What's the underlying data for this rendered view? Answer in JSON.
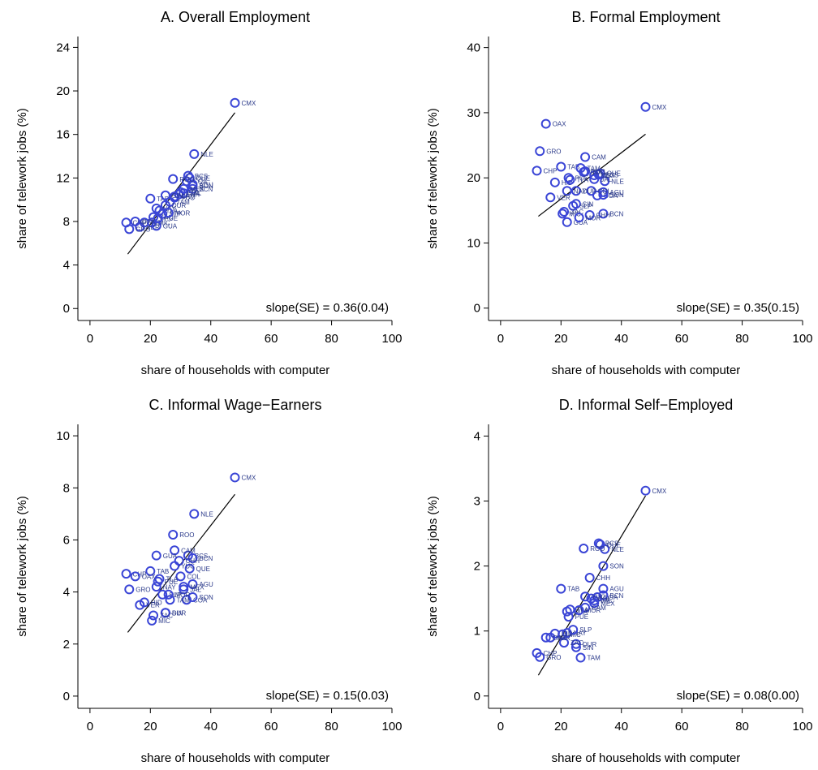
{
  "chart_data": [
    {
      "type": "scatter",
      "title": "A. Overall Employment",
      "x_label": "share of households with computer",
      "y_label": "share of telework jobs (%)",
      "annotation": "slope(SE) = 0.36(0.04)",
      "color": "#3a45d6",
      "labels": [
        "CMX",
        "NLE",
        "BCS",
        "QUE",
        "COA",
        "BCN",
        "SON",
        "AGU",
        "CHH",
        "JAL",
        "MEX",
        "COL",
        "CAM",
        "ROO",
        "TAB",
        "YUC",
        "TAM",
        "SIN",
        "DUR",
        "NAY",
        "MIC",
        "SLP",
        "ZAC",
        "HID",
        "PUE",
        "VER",
        "GUA",
        "TLA",
        "GRO",
        "CHP",
        "OAX",
        "MOR"
      ],
      "x": [
        48,
        34.5,
        32.5,
        33,
        32,
        34,
        34,
        34,
        29.5,
        31,
        31,
        30,
        28,
        27.5,
        20,
        28,
        26.5,
        25,
        25,
        22,
        20.5,
        24,
        21,
        18,
        22.5,
        16.5,
        22,
        23,
        13,
        12,
        15,
        26
      ],
      "y": [
        18.9,
        14.2,
        12.2,
        12.0,
        11.7,
        11.0,
        11.3,
        11.4,
        10.5,
        10.6,
        11.0,
        10.7,
        10.3,
        11.9,
        10.1,
        10.2,
        9.8,
        10.4,
        9.5,
        9.2,
        7.9,
        8.7,
        8.4,
        7.9,
        8.3,
        7.5,
        7.6,
        9.0,
        7.3,
        7.9,
        8.0,
        8.8
      ],
      "fit_line": {
        "x": [
          12.5,
          48
        ],
        "y": [
          5.0,
          18.0
        ]
      },
      "xlim": [
        -4,
        100
      ],
      "ylim": [
        -1.1,
        25
      ],
      "xticks": [
        0,
        20,
        40,
        60,
        80,
        100
      ],
      "yticks": [
        0,
        4,
        8,
        12,
        16,
        20,
        24
      ]
    },
    {
      "type": "scatter",
      "title": "B. Formal Employment",
      "x_label": "share of households with computer",
      "y_label": "share of telework jobs (%)",
      "annotation": "slope(SE) = 0.35(0.15)",
      "color": "#3a45d6",
      "labels": [
        "CMX",
        "NLE",
        "BCS",
        "QUE",
        "COA",
        "BCN",
        "SON",
        "AGU",
        "CHH",
        "JAL",
        "MEX",
        "COL",
        "CAM",
        "ROO",
        "TAB",
        "YUC",
        "TAM",
        "SIN",
        "DUR",
        "NAY",
        "MIC",
        "SLP",
        "ZAC",
        "HID",
        "PUE",
        "VER",
        "GUA",
        "TLA",
        "GRO",
        "CHP",
        "OAX",
        "MOR"
      ],
      "x": [
        48,
        34.5,
        32.5,
        33,
        32,
        34,
        34,
        34,
        29.5,
        31,
        31,
        30,
        28,
        27.5,
        20,
        28,
        26.5,
        25,
        25,
        22,
        20.5,
        24,
        21,
        18,
        22.5,
        16.5,
        22,
        23,
        13,
        12,
        15,
        26
      ],
      "y": [
        30.9,
        19.5,
        20.5,
        20.7,
        17.3,
        14.5,
        17.4,
        17.8,
        14.3,
        19.8,
        20.4,
        18.0,
        23.2,
        20.9,
        21.7,
        21.0,
        21.5,
        16.0,
        18.0,
        18.0,
        14.5,
        15.7,
        14.8,
        19.3,
        20.0,
        17.0,
        13.2,
        19.7,
        24.1,
        21.1,
        28.3,
        13.9
      ],
      "fit_line": {
        "x": [
          12.5,
          48
        ],
        "y": [
          14.1,
          26.7
        ]
      },
      "xlim": [
        -4,
        100
      ],
      "ylim": [
        -1.9,
        41.7
      ],
      "xticks": [
        0,
        20,
        40,
        60,
        80,
        100
      ],
      "yticks": [
        0,
        10,
        20,
        30,
        40
      ]
    },
    {
      "type": "scatter",
      "title": "C. Informal Wage−Earners",
      "x_label": "share of households with computer",
      "y_label": "share of telework jobs (%)",
      "annotation": "slope(SE) = 0.15(0.03)",
      "color": "#3a45d6",
      "labels": [
        "CMX",
        "NLE",
        "BCS",
        "QUE",
        "COA",
        "BCN",
        "SON",
        "AGU",
        "CHH",
        "JAL",
        "MEX",
        "COL",
        "CAM",
        "ROO",
        "TAB",
        "YUC",
        "TAM",
        "SIN",
        "DUR",
        "NAY",
        "MIC",
        "SLP",
        "ZAC",
        "HID",
        "PUE",
        "VER",
        "GUA",
        "TLA",
        "GRO",
        "CHP",
        "OAX",
        "MOR"
      ],
      "x": [
        48,
        34.5,
        32.5,
        33,
        32,
        34,
        34,
        34,
        29.5,
        31,
        31,
        30,
        28,
        27.5,
        20,
        28,
        26.5,
        25,
        25,
        22,
        20.5,
        24,
        21,
        18,
        22.5,
        16.5,
        22,
        23,
        13,
        12,
        15,
        26
      ],
      "y": [
        8.4,
        7.0,
        5.4,
        4.9,
        3.7,
        5.3,
        3.8,
        4.3,
        5.2,
        4.1,
        4.2,
        4.6,
        5.6,
        6.2,
        4.8,
        5.0,
        3.7,
        3.2,
        3.2,
        4.2,
        2.9,
        3.9,
        3.1,
        3.6,
        4.4,
        3.5,
        5.4,
        4.5,
        4.1,
        4.7,
        4.6,
        3.9
      ],
      "fit_line": {
        "x": [
          12.5,
          48
        ],
        "y": [
          2.45,
          7.75
        ]
      },
      "xlim": [
        -4,
        100
      ],
      "ylim": [
        -0.47,
        10.44
      ],
      "xticks": [
        0,
        20,
        40,
        60,
        80,
        100
      ],
      "yticks": [
        0,
        2,
        4,
        6,
        8,
        10
      ]
    },
    {
      "type": "scatter",
      "title": "D. Informal Self−Employed",
      "x_label": "share of households with computer",
      "y_label": "share of telework jobs (%)",
      "annotation": "slope(SE) = 0.08(0.00)",
      "color": "#3a45d6",
      "labels": [
        "CMX",
        "NLE",
        "BCS",
        "QUE",
        "COA",
        "BCN",
        "SON",
        "AGU",
        "CHH",
        "JAL",
        "MEX",
        "COL",
        "CAM",
        "ROO",
        "TAB",
        "YUC",
        "TAM",
        "SIN",
        "DUR",
        "NAY",
        "MIC",
        "SLP",
        "ZAC",
        "HID",
        "PUE",
        "VER",
        "GUA",
        "TLA",
        "GRO",
        "CHP",
        "OAX",
        "MOR"
      ],
      "x": [
        48,
        34.5,
        32.5,
        33,
        32,
        34,
        34,
        34,
        29.5,
        31,
        31,
        30,
        28,
        27.5,
        20,
        28,
        26.5,
        25,
        25,
        22,
        20.5,
        24,
        21,
        18,
        22.5,
        16.5,
        22,
        23,
        13,
        12,
        15,
        26
      ],
      "y": [
        3.16,
        2.26,
        2.35,
        2.33,
        1.52,
        1.55,
        2.0,
        1.65,
        1.82,
        1.47,
        1.43,
        1.5,
        1.36,
        2.27,
        1.65,
        1.53,
        0.59,
        0.75,
        0.8,
        0.97,
        0.95,
        1.02,
        0.82,
        0.96,
        1.22,
        0.9,
        1.3,
        1.33,
        0.6,
        0.66,
        0.9,
        1.32
      ],
      "fit_line": {
        "x": [
          12.5,
          48
        ],
        "y": [
          0.32,
          3.08
        ]
      },
      "xlim": [
        -4,
        100
      ],
      "ylim": [
        -0.19,
        4.18
      ],
      "xticks": [
        0,
        20,
        40,
        60,
        80,
        100
      ],
      "yticks": [
        0,
        1,
        2,
        3,
        4
      ]
    }
  ]
}
